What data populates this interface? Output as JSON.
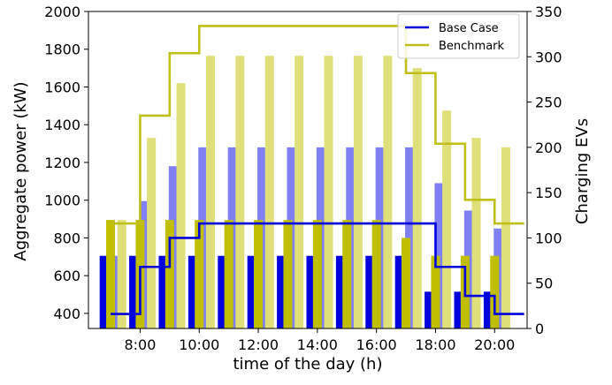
{
  "chart_data": {
    "type": "bar",
    "title": "",
    "xlabel": "time of the day (h)",
    "ylabel_left": "Aggregate power (kW)",
    "ylabel_right": "Charging EVs",
    "xlim": [
      6.25,
      21.1
    ],
    "ylim_left": [
      320,
      2000
    ],
    "ylim_right": [
      0,
      350
    ],
    "x_ticks": [
      8,
      10,
      12,
      14,
      16,
      18,
      20
    ],
    "x_tick_labels": [
      "8:00",
      "10:00",
      "12:00",
      "14:00",
      "16:00",
      "18:00",
      "20:00"
    ],
    "y_left_ticks": [
      400,
      600,
      800,
      1000,
      1200,
      1400,
      1600,
      1800,
      2000
    ],
    "y_right_ticks": [
      0,
      50,
      100,
      150,
      200,
      250,
      300,
      350
    ],
    "grid": false,
    "legend_position": "top-right",
    "bar_hours": [
      7,
      8,
      9,
      10,
      11,
      12,
      13,
      14,
      15,
      16,
      17,
      18,
      19,
      20
    ],
    "bar_groups": [
      {
        "name": "Base Case",
        "series": "base_case",
        "color_dark": "#0000dd",
        "color_light": "#8080f4",
        "bar_width_h": 0.3,
        "offsets_h": [
          -0.22,
          0.12
        ],
        "values_dark": [
          705,
          705,
          705,
          705,
          705,
          705,
          705,
          705,
          705,
          705,
          705,
          515,
          515,
          515
        ],
        "values_light": [
          705,
          995,
          1180,
          1280,
          1280,
          1280,
          1280,
          1280,
          1280,
          1280,
          1280,
          1090,
          945,
          850
        ]
      },
      {
        "name": "Benchmark",
        "series": "benchmark",
        "color_dark": "#bfbf00",
        "color_light": "#e0e07a",
        "bar_width_h": 0.3,
        "offsets_h": [
          0.0,
          0.38
        ],
        "values_dark": [
          895,
          895,
          895,
          895,
          895,
          895,
          895,
          895,
          895,
          895,
          800,
          705,
          705,
          705
        ],
        "values_light": [
          895,
          1330,
          1620,
          1765,
          1765,
          1765,
          1765,
          1765,
          1765,
          1765,
          1700,
          1475,
          1330,
          1280
        ]
      }
    ],
    "series": [
      {
        "name": "Base Case",
        "color": "#0000dd",
        "axis": "right",
        "steps": [
          {
            "x": 7.0,
            "y": 16
          },
          {
            "x": 8.0,
            "y": 68
          },
          {
            "x": 9.0,
            "y": 100
          },
          {
            "x": 10.0,
            "y": 116
          },
          {
            "x": 18.0,
            "y": 68
          },
          {
            "x": 19.0,
            "y": 36
          },
          {
            "x": 20.0,
            "y": 16
          },
          {
            "x": 21.0,
            "y": 16
          }
        ]
      },
      {
        "name": "Benchmark",
        "color": "#bfbf19",
        "axis": "right",
        "steps": [
          {
            "x": 7.0,
            "y": 116
          },
          {
            "x": 8.0,
            "y": 235
          },
          {
            "x": 9.0,
            "y": 304
          },
          {
            "x": 10.0,
            "y": 334
          },
          {
            "x": 17.0,
            "y": 282
          },
          {
            "x": 18.0,
            "y": 204
          },
          {
            "x": 19.0,
            "y": 142
          },
          {
            "x": 20.0,
            "y": 116
          },
          {
            "x": 21.0,
            "y": 116
          }
        ]
      }
    ]
  }
}
